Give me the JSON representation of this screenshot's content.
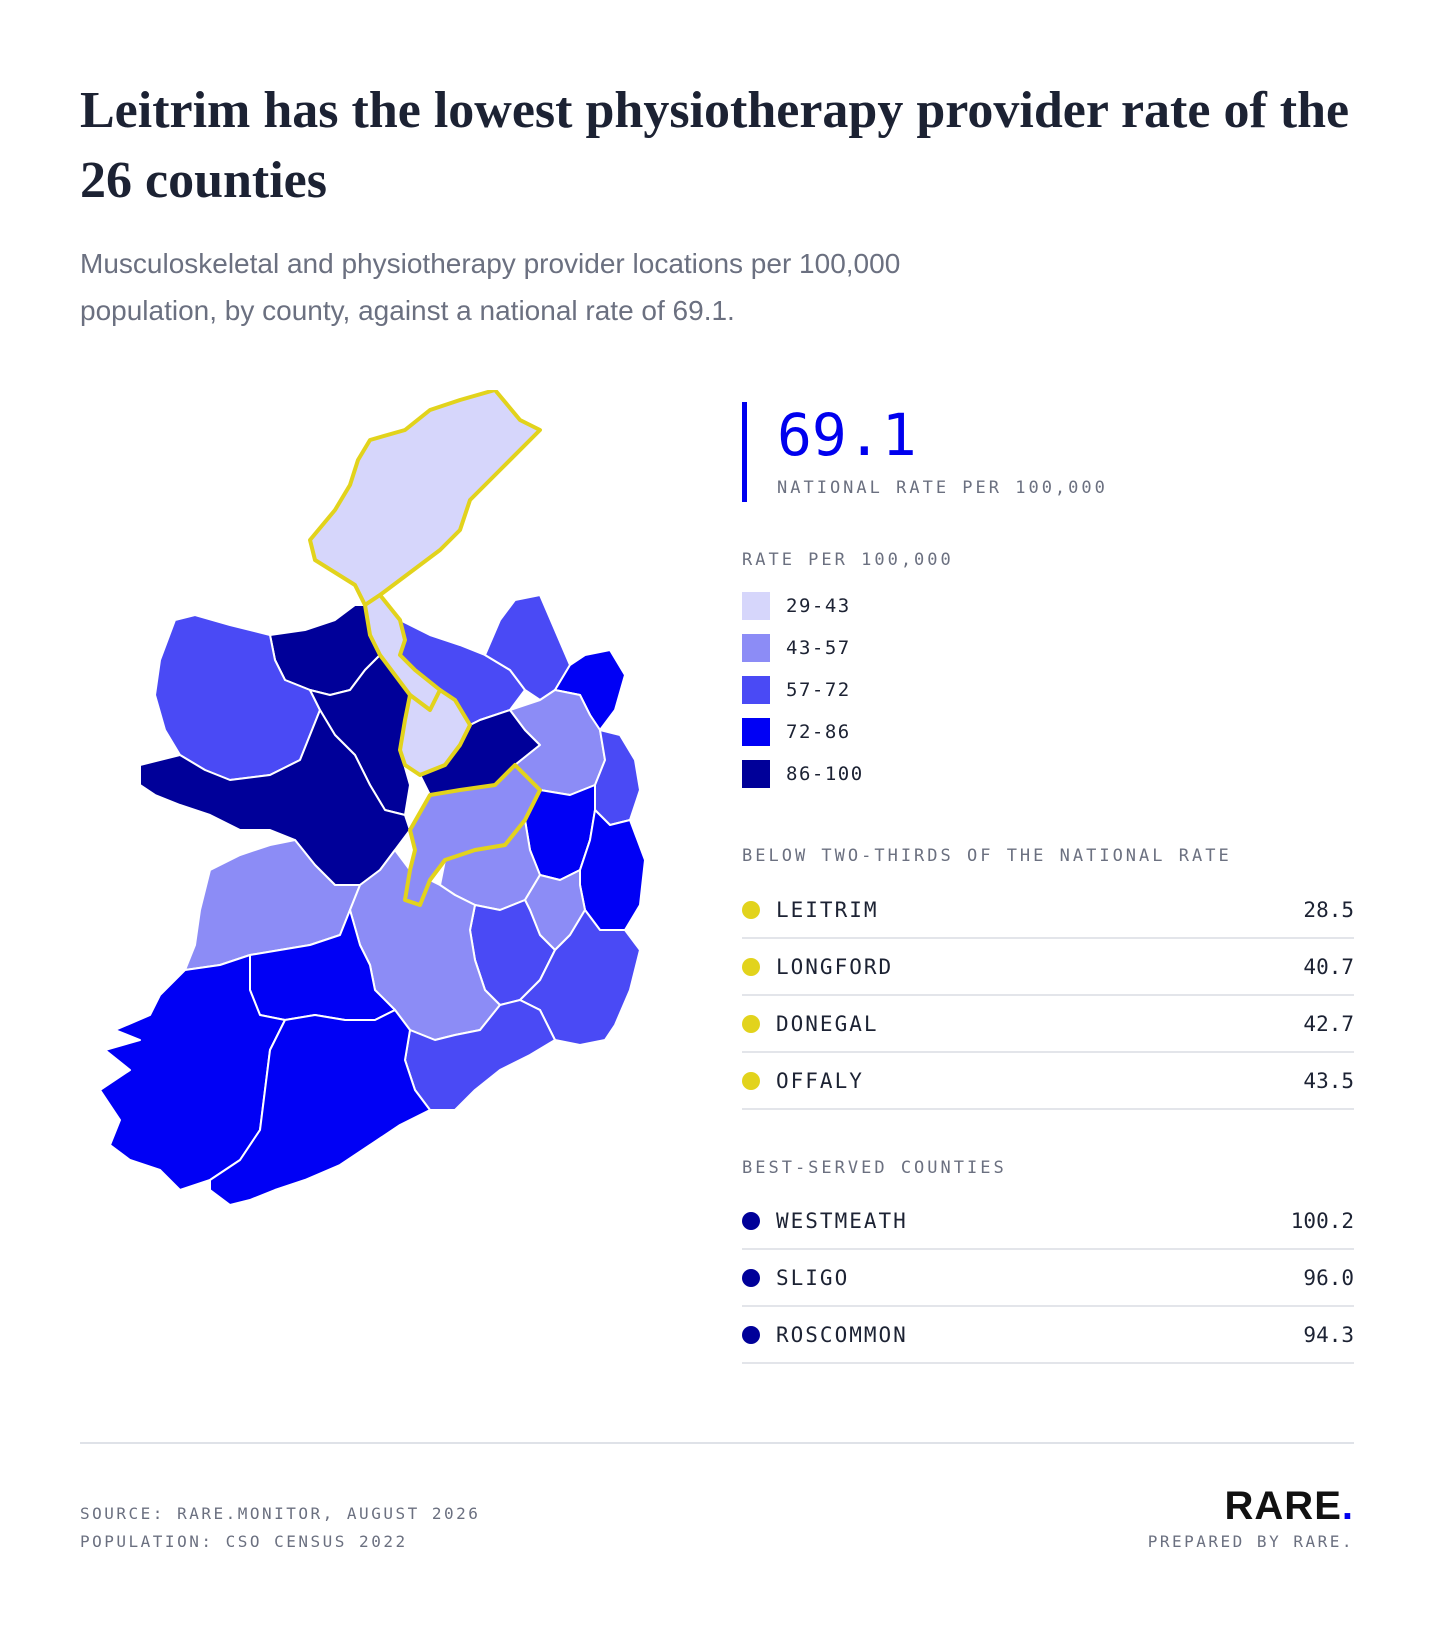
{
  "header": {
    "title": "Leitrim has the lowest physiotherapy provider rate of the 26 counties",
    "subtitle": "Musculoskeletal and physiotherapy provider locations per 100,000 population, by county, against a national rate of 69.1."
  },
  "national": {
    "value": "69.1",
    "label": "NATIONAL RATE PER 100,000"
  },
  "legend": {
    "title": "RATE PER 100,000",
    "items": [
      {
        "label": "29-43",
        "color": "#d6d6fb"
      },
      {
        "label": "43-57",
        "color": "#8c8cf6"
      },
      {
        "label": "57-72",
        "color": "#4a4af5"
      },
      {
        "label": "72-86",
        "color": "#0000f5"
      },
      {
        "label": "86-100",
        "color": "#000099"
      }
    ]
  },
  "highlight_color": "#e2d31c",
  "below": {
    "title": "BELOW TWO-THIRDS OF THE NATIONAL RATE",
    "rows": [
      {
        "name": "LEITRIM",
        "value": "28.5"
      },
      {
        "name": "LONGFORD",
        "value": "40.7"
      },
      {
        "name": "DONEGAL",
        "value": "42.7"
      },
      {
        "name": "OFFALY",
        "value": "43.5"
      }
    ]
  },
  "best": {
    "title": "BEST-SERVED COUNTIES",
    "rows": [
      {
        "name": "WESTMEATH",
        "value": "100.2"
      },
      {
        "name": "SLIGO",
        "value": "96.0"
      },
      {
        "name": "ROSCOMMON",
        "value": "94.3"
      }
    ]
  },
  "footer": {
    "source": "SOURCE: RARE.MONITOR, AUGUST 2026",
    "population": "POPULATION: CSO CENSUS 2022",
    "brand": "RARE",
    "brand_dot": ".",
    "prepared": "PREPARED BY RARE."
  },
  "map": {
    "counties": [
      {
        "name": "Donegal",
        "class": "29-43",
        "highlight": true
      },
      {
        "name": "Leitrim",
        "class": "29-43",
        "highlight": true
      },
      {
        "name": "Longford",
        "class": "29-43",
        "highlight": true
      },
      {
        "name": "Offaly",
        "class": "43-57",
        "highlight": true
      },
      {
        "name": "Sligo",
        "class": "86-100",
        "highlight": false
      },
      {
        "name": "Roscommon",
        "class": "86-100",
        "highlight": false
      },
      {
        "name": "Galway",
        "class": "86-100",
        "highlight": false
      },
      {
        "name": "Westmeath",
        "class": "86-100",
        "highlight": false
      },
      {
        "name": "Mayo",
        "class": "57-72",
        "highlight": false
      },
      {
        "name": "Cavan",
        "class": "57-72",
        "highlight": false
      },
      {
        "name": "Monaghan",
        "class": "57-72",
        "highlight": false
      },
      {
        "name": "Louth",
        "class": "72-86",
        "highlight": false
      },
      {
        "name": "Meath",
        "class": "43-57",
        "highlight": false
      },
      {
        "name": "Dublin",
        "class": "57-72",
        "highlight": false
      },
      {
        "name": "Kildare",
        "class": "72-86",
        "highlight": false
      },
      {
        "name": "Wicklow",
        "class": "72-86",
        "highlight": false
      },
      {
        "name": "Laois",
        "class": "43-57",
        "highlight": false
      },
      {
        "name": "Carlow",
        "class": "43-57",
        "highlight": false
      },
      {
        "name": "Kilkenny",
        "class": "57-72",
        "highlight": false
      },
      {
        "name": "Wexford",
        "class": "57-72",
        "highlight": false
      },
      {
        "name": "Clare",
        "class": "43-57",
        "highlight": false
      },
      {
        "name": "Tipperary",
        "class": "43-57",
        "highlight": false
      },
      {
        "name": "Waterford",
        "class": "57-72",
        "highlight": false
      },
      {
        "name": "Limerick",
        "class": "72-86",
        "highlight": false
      },
      {
        "name": "Kerry",
        "class": "72-86",
        "highlight": false
      },
      {
        "name": "Cork",
        "class": "72-86",
        "highlight": false
      }
    ]
  }
}
